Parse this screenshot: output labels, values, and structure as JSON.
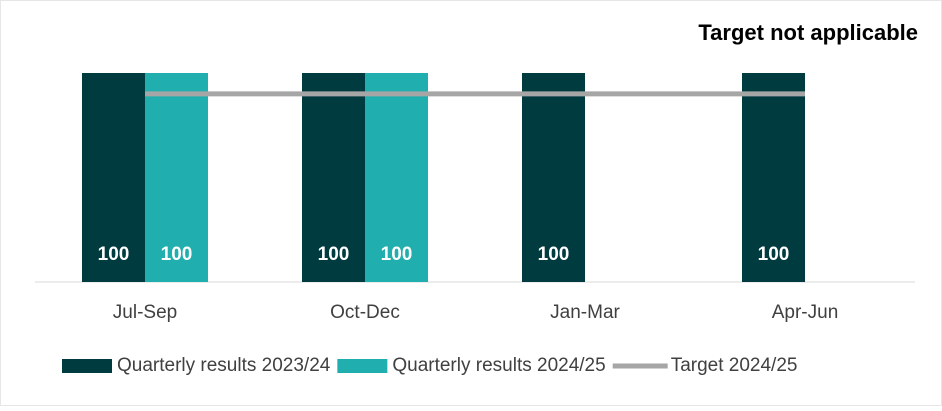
{
  "chart_data": {
    "type": "bar",
    "title": "Target not applicable",
    "categories": [
      "Jul-Sep",
      "Oct-Dec",
      "Jan-Mar",
      "Apr-Jun"
    ],
    "series": [
      {
        "name": "Quarterly results 2023/24",
        "color": "#003b40",
        "values": [
          100,
          100,
          100,
          100
        ]
      },
      {
        "name": "Quarterly results 2024/25",
        "color": "#20aeae",
        "values": [
          100,
          100,
          null,
          null
        ]
      },
      {
        "name": "Target 2024/25",
        "color": "#a6a6a6",
        "type": "line",
        "values": [
          90,
          90,
          90,
          90
        ]
      }
    ],
    "ylim": [
      0,
      100
    ],
    "legend": "bottom"
  }
}
